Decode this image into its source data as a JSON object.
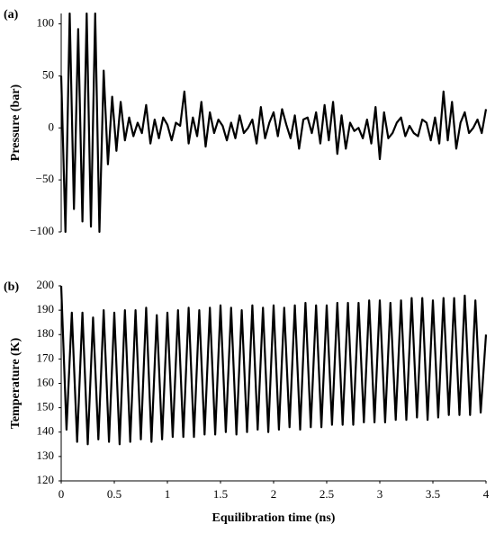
{
  "chart_data": [
    {
      "type": "line",
      "annotation": "(a)",
      "ylabel": "Pressure (bar)",
      "xlim": [
        0,
        4
      ],
      "ylim": [
        -100,
        110
      ],
      "yticks": [
        {
          "value": -100,
          "label": "−100"
        },
        {
          "value": -50,
          "label": "−50"
        },
        0,
        50,
        100
      ],
      "x": [
        0,
        0.04,
        0.08,
        0.12,
        0.16,
        0.2,
        0.24,
        0.28,
        0.32,
        0.36,
        0.4,
        0.44,
        0.48,
        0.52,
        0.56,
        0.6,
        0.64,
        0.68,
        0.72,
        0.76,
        0.8,
        0.84,
        0.88,
        0.92,
        0.96,
        1,
        1.04,
        1.08,
        1.12,
        1.16,
        1.2,
        1.24,
        1.28,
        1.32,
        1.36,
        1.4,
        1.44,
        1.48,
        1.52,
        1.56,
        1.6,
        1.64,
        1.68,
        1.72,
        1.76,
        1.8,
        1.84,
        1.88,
        1.92,
        1.96,
        2,
        2.04,
        2.08,
        2.12,
        2.16,
        2.2,
        2.24,
        2.28,
        2.32,
        2.36,
        2.4,
        2.44,
        2.48,
        2.52,
        2.56,
        2.6,
        2.64,
        2.68,
        2.72,
        2.76,
        2.8,
        2.84,
        2.88,
        2.92,
        2.96,
        3,
        3.04,
        3.08,
        3.12,
        3.16,
        3.2,
        3.24,
        3.28,
        3.32,
        3.36,
        3.4,
        3.44,
        3.48,
        3.52,
        3.56,
        3.6,
        3.64,
        3.68,
        3.72,
        3.76,
        3.8,
        3.84,
        3.88,
        3.92,
        3.96,
        4
      ],
      "series": [
        {
          "color": "#000000",
          "values": [
            50,
            -100,
            110,
            -78,
            95,
            -90,
            110,
            -95,
            110,
            -100,
            55,
            -35,
            30,
            -22,
            25,
            -12,
            10,
            -8,
            5,
            -5,
            22,
            -15,
            8,
            -10,
            10,
            3,
            -12,
            5,
            2,
            35,
            -15,
            10,
            -8,
            25,
            -18,
            15,
            -5,
            8,
            2,
            -12,
            5,
            -10,
            12,
            -5,
            0,
            8,
            -15,
            20,
            -10,
            5,
            15,
            -8,
            18,
            3,
            -10,
            12,
            -20,
            8,
            10,
            -5,
            15,
            -15,
            22,
            -12,
            25,
            -25,
            12,
            -20,
            5,
            -3,
            0,
            -10,
            8,
            -15,
            20,
            -30,
            15,
            -10,
            -5,
            5,
            10,
            -8,
            2,
            -5,
            -8,
            8,
            5,
            -12,
            10,
            -15,
            35,
            -12,
            25,
            -20,
            5,
            15,
            -5,
            0,
            8,
            -5,
            18
          ]
        }
      ]
    },
    {
      "type": "line",
      "annotation": "(b)",
      "ylabel": "Temperature (K)",
      "xlabel": "Equilibration time (ns)",
      "xlim": [
        0,
        4
      ],
      "ylim": [
        120,
        200
      ],
      "xticks": [
        0,
        0.5,
        1,
        1.5,
        2,
        2.5,
        3,
        3.5,
        4
      ],
      "yticks": [
        120,
        130,
        140,
        150,
        160,
        170,
        180,
        190,
        200
      ],
      "x": [
        0,
        0.05,
        0.1,
        0.15,
        0.2,
        0.25,
        0.3,
        0.35,
        0.4,
        0.45,
        0.5,
        0.55,
        0.6,
        0.65,
        0.7,
        0.75,
        0.8,
        0.85,
        0.9,
        0.95,
        1,
        1.05,
        1.1,
        1.15,
        1.2,
        1.25,
        1.3,
        1.35,
        1.4,
        1.45,
        1.5,
        1.55,
        1.6,
        1.65,
        1.7,
        1.75,
        1.8,
        1.85,
        1.9,
        1.95,
        2,
        2.05,
        2.1,
        2.15,
        2.2,
        2.25,
        2.3,
        2.35,
        2.4,
        2.45,
        2.5,
        2.55,
        2.6,
        2.65,
        2.7,
        2.75,
        2.8,
        2.85,
        2.9,
        2.95,
        3,
        3.05,
        3.1,
        3.15,
        3.2,
        3.25,
        3.3,
        3.35,
        3.4,
        3.45,
        3.5,
        3.55,
        3.6,
        3.65,
        3.7,
        3.75,
        3.8,
        3.85,
        3.9,
        3.95,
        4
      ],
      "series": [
        {
          "color": "#000000",
          "values": [
            200,
            141,
            189,
            136,
            189,
            135,
            187,
            137,
            190,
            136,
            189,
            135,
            190,
            136,
            190,
            137,
            191,
            136,
            188,
            137,
            189,
            138,
            190,
            138,
            191,
            138,
            190,
            139,
            191,
            139,
            192,
            140,
            191,
            139,
            190,
            140,
            192,
            141,
            191,
            140,
            192,
            141,
            191,
            142,
            192,
            141,
            193,
            142,
            192,
            142,
            192,
            143,
            193,
            143,
            193,
            143,
            193,
            144,
            194,
            144,
            194,
            144,
            193,
            145,
            194,
            145,
            195,
            146,
            195,
            145,
            194,
            146,
            195,
            147,
            195,
            147,
            196,
            147,
            194,
            148,
            180
          ]
        }
      ]
    }
  ]
}
